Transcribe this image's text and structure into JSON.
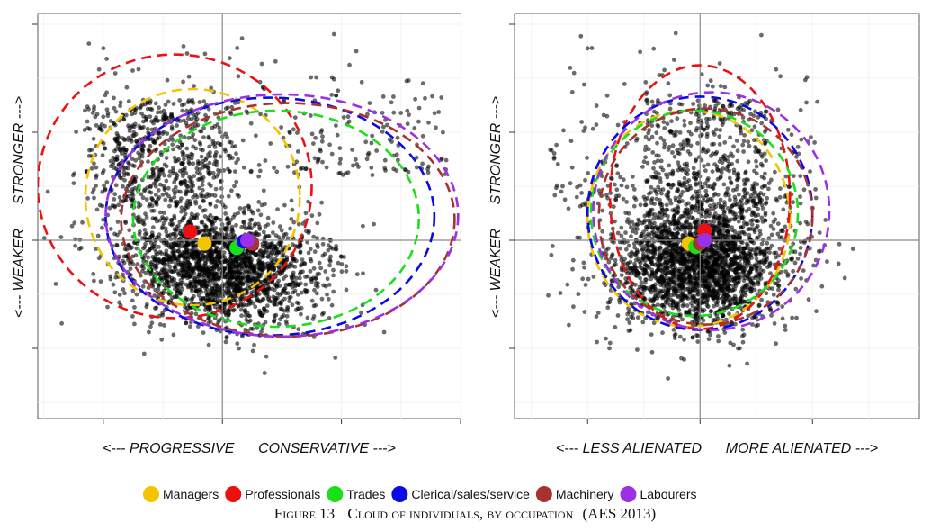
{
  "caption": {
    "number_prefix": "Figure 13",
    "title": "Cloud of individuals, by occupation",
    "source": "(AES 2013)"
  },
  "legend": [
    {
      "name": "Managers",
      "color": "#F5C400"
    },
    {
      "name": "Professionals",
      "color": "#EE1010"
    },
    {
      "name": "Trades",
      "color": "#1AE01A"
    },
    {
      "name": "Clerical/sales/service",
      "color": "#0A0AE6"
    },
    {
      "name": "Machinery",
      "color": "#A8322D"
    },
    {
      "name": "Labourers",
      "color": "#9B30E8"
    }
  ],
  "chart_data": [
    {
      "type": "scatter",
      "xlabel": "<--- PROGRESSIVE      CONSERVATIVE --->",
      "ylabel": "<--- WEAKER      STRONGER --->",
      "xlim": [
        -1.55,
        2.0
      ],
      "ylim": [
        -1.65,
        2.1
      ],
      "x_ticks": [
        -1,
        0,
        1,
        2
      ],
      "y_ticks": [
        -1,
        0,
        1,
        2
      ],
      "reference_lines": {
        "x": 0,
        "y": 0
      },
      "grid": true,
      "cloud": {
        "n_points": 3000,
        "center": [
          0.0,
          -0.3
        ],
        "note": "dense cloud of individuals"
      },
      "centroids": [
        {
          "name": "Managers",
          "x": -0.15,
          "y": -0.03
        },
        {
          "name": "Professionals",
          "x": -0.27,
          "y": 0.08
        },
        {
          "name": "Trades",
          "x": 0.12,
          "y": -0.07
        },
        {
          "name": "Clerical/sales/service",
          "x": 0.18,
          "y": -0.01
        },
        {
          "name": "Machinery",
          "x": 0.25,
          "y": -0.03
        },
        {
          "name": "Labourers",
          "x": 0.21,
          "y": 0.0
        }
      ],
      "ellipses": [
        {
          "name": "Managers",
          "cx": -0.25,
          "cy": 0.4,
          "rx": 0.9,
          "ry": 1.0
        },
        {
          "name": "Professionals",
          "cx": -0.4,
          "cy": 0.5,
          "rx": 1.15,
          "ry": 1.22
        },
        {
          "name": "Trades",
          "cx": 0.45,
          "cy": 0.2,
          "rx": 1.2,
          "ry": 1.0
        },
        {
          "name": "Clerical/sales/service",
          "cx": 0.4,
          "cy": 0.22,
          "rx": 1.38,
          "ry": 1.1
        },
        {
          "name": "Machinery",
          "cx": 0.55,
          "cy": 0.19,
          "rx": 1.4,
          "ry": 1.08
        },
        {
          "name": "Labourers",
          "cx": 0.5,
          "cy": 0.23,
          "rx": 1.48,
          "ry": 1.12
        }
      ]
    },
    {
      "type": "scatter",
      "xlabel": "<--- LESS ALIENATED      MORE ALIENATED --->",
      "ylabel": "<--- WEAKER      STRONGER --->",
      "xlim": [
        -1.65,
        1.95
      ],
      "ylim": [
        -1.65,
        2.1
      ],
      "x_ticks": [
        -1,
        0,
        1,
        2
      ],
      "y_ticks": [
        -1,
        0,
        1,
        2
      ],
      "reference_lines": {
        "x": 0,
        "y": 0
      },
      "grid": true,
      "cloud": {
        "n_points": 3000,
        "center": [
          0.0,
          -0.2
        ],
        "note": "dense cloud of individuals"
      },
      "centroids": [
        {
          "name": "Managers",
          "x": -0.1,
          "y": -0.03
        },
        {
          "name": "Professionals",
          "x": 0.04,
          "y": 0.09
        },
        {
          "name": "Trades",
          "x": -0.04,
          "y": -0.06
        },
        {
          "name": "Clerical/sales/service",
          "x": 0.03,
          "y": -0.01
        },
        {
          "name": "Machinery",
          "x": 0.0,
          "y": -0.03
        },
        {
          "name": "Labourers",
          "x": 0.04,
          "y": 0.0
        }
      ],
      "ellipses": [
        {
          "name": "Managers",
          "cx": -0.1,
          "cy": 0.2,
          "rx": 0.9,
          "ry": 1.0
        },
        {
          "name": "Professionals",
          "cx": 0.0,
          "cy": 0.4,
          "rx": 0.8,
          "ry": 1.22
        },
        {
          "name": "Trades",
          "cx": -0.05,
          "cy": 0.25,
          "rx": 0.92,
          "ry": 0.95
        },
        {
          "name": "Clerical/sales/service",
          "cx": 0.0,
          "cy": 0.25,
          "rx": 1.0,
          "ry": 1.08
        },
        {
          "name": "Machinery",
          "cx": 0.05,
          "cy": 0.22,
          "rx": 0.95,
          "ry": 1.0
        },
        {
          "name": "Labourers",
          "cx": 0.1,
          "cy": 0.27,
          "rx": 1.05,
          "ry": 1.1
        }
      ]
    }
  ]
}
